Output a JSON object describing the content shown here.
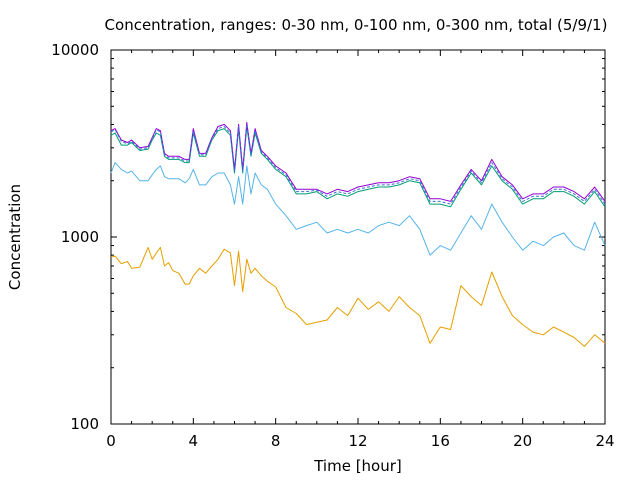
{
  "chart_data": {
    "type": "line",
    "title": "Concentration, ranges: 0-30 nm, 0-100 nm, 0-300 nm, total (5/9/1)",
    "xlabel": "Time [hour]",
    "ylabel": "Concentration",
    "xlim": [
      0,
      24
    ],
    "ylim": [
      100,
      10000
    ],
    "yscale": "log",
    "grid": false,
    "legend": "none",
    "x_ticks": [
      "0",
      "4",
      "8",
      "12",
      "16",
      "20",
      "24"
    ],
    "y_ticks": [
      "100",
      "1000",
      "10000"
    ],
    "x_tick_values": [
      0,
      4,
      8,
      12,
      16,
      20,
      24
    ],
    "y_tick_values": [
      100,
      1000,
      10000
    ],
    "x": [
      0,
      0.2,
      0.5,
      0.8,
      1.0,
      1.4,
      1.8,
      2.0,
      2.2,
      2.4,
      2.6,
      2.8,
      3.0,
      3.3,
      3.6,
      3.8,
      4.0,
      4.3,
      4.6,
      4.9,
      5.2,
      5.5,
      5.8,
      6.0,
      6.2,
      6.4,
      6.6,
      6.8,
      7.0,
      7.3,
      7.6,
      8.0,
      8.5,
      9.0,
      9.5,
      10.0,
      10.5,
      11.0,
      11.5,
      12.0,
      12.5,
      13.0,
      13.5,
      14.0,
      14.5,
      15.0,
      15.5,
      16.0,
      16.5,
      17.0,
      17.5,
      18.0,
      18.5,
      19.0,
      19.5,
      20.0,
      20.5,
      21.0,
      21.5,
      22.0,
      22.5,
      23.0,
      23.5,
      24.0
    ],
    "series": [
      {
        "color": "#e69f00",
        "values": [
          780,
          790,
          720,
          740,
          680,
          690,
          880,
          760,
          820,
          880,
          700,
          730,
          660,
          640,
          560,
          560,
          620,
          680,
          640,
          700,
          760,
          860,
          820,
          550,
          840,
          510,
          760,
          640,
          680,
          620,
          580,
          540,
          420,
          390,
          340,
          350,
          360,
          420,
          380,
          470,
          410,
          450,
          400,
          480,
          420,
          380,
          270,
          330,
          320,
          550,
          480,
          430,
          650,
          480,
          380,
          340,
          310,
          300,
          330,
          310,
          290,
          260,
          300,
          270
        ]
      },
      {
        "color": "#56b4e9",
        "values": [
          2200,
          2500,
          2300,
          2200,
          2250,
          2000,
          2000,
          2150,
          2300,
          2400,
          2100,
          2050,
          2050,
          2050,
          1950,
          2050,
          2300,
          1900,
          1900,
          2100,
          2200,
          2200,
          1900,
          1500,
          2100,
          1500,
          2400,
          1700,
          2200,
          1900,
          1800,
          1500,
          1300,
          1100,
          1150,
          1200,
          1050,
          1100,
          1050,
          1100,
          1050,
          1150,
          1200,
          1150,
          1300,
          1100,
          800,
          900,
          850,
          1050,
          1300,
          1100,
          1500,
          1200,
          1000,
          850,
          950,
          900,
          1000,
          1050,
          900,
          850,
          1200,
          900
        ]
      },
      {
        "color": "#009e73",
        "values": [
          3500,
          3600,
          3100,
          3100,
          3200,
          2900,
          2950,
          3300,
          3600,
          3500,
          2700,
          2600,
          2600,
          2600,
          2500,
          2500,
          3600,
          2700,
          2700,
          3300,
          3700,
          3800,
          3500,
          2200,
          3800,
          2200,
          3900,
          2700,
          3600,
          2800,
          2600,
          2300,
          2100,
          1700,
          1700,
          1750,
          1600,
          1700,
          1650,
          1750,
          1800,
          1850,
          1850,
          1900,
          2000,
          1950,
          1500,
          1500,
          1450,
          1800,
          2200,
          1900,
          2400,
          2000,
          1800,
          1500,
          1600,
          1600,
          1750,
          1750,
          1650,
          1500,
          1750,
          1450
        ]
      },
      {
        "color": "#9400d3",
        "values": [
          3700,
          3800,
          3300,
          3200,
          3300,
          3000,
          3050,
          3400,
          3800,
          3700,
          2800,
          2700,
          2700,
          2700,
          2600,
          2600,
          3800,
          2800,
          2800,
          3400,
          3900,
          4000,
          3700,
          2300,
          4000,
          2300,
          4100,
          2800,
          3800,
          2900,
          2700,
          2400,
          2200,
          1800,
          1800,
          1800,
          1700,
          1800,
          1750,
          1850,
          1900,
          1950,
          1950,
          2000,
          2100,
          2050,
          1600,
          1600,
          1550,
          1900,
          2300,
          2000,
          2600,
          2100,
          1900,
          1600,
          1700,
          1700,
          1850,
          1850,
          1750,
          1600,
          1850,
          1550
        ]
      },
      {
        "color": "#3a6fd8",
        "values": [
          3650,
          3750,
          3250,
          3150,
          3250,
          2950,
          3000,
          3350,
          3750,
          3650,
          2750,
          2650,
          2650,
          2650,
          2550,
          2550,
          3700,
          2750,
          2750,
          3350,
          3800,
          3900,
          3600,
          2250,
          3900,
          2250,
          4000,
          2750,
          3700,
          2850,
          2650,
          2350,
          2150,
          1750,
          1750,
          1780,
          1650,
          1750,
          1700,
          1800,
          1850,
          1900,
          1900,
          1950,
          2050,
          2000,
          1550,
          1550,
          1500,
          1850,
          2250,
          1950,
          2500,
          2050,
          1850,
          1550,
          1650,
          1650,
          1800,
          1800,
          1700,
          1550,
          1800,
          1500
        ]
      }
    ]
  }
}
